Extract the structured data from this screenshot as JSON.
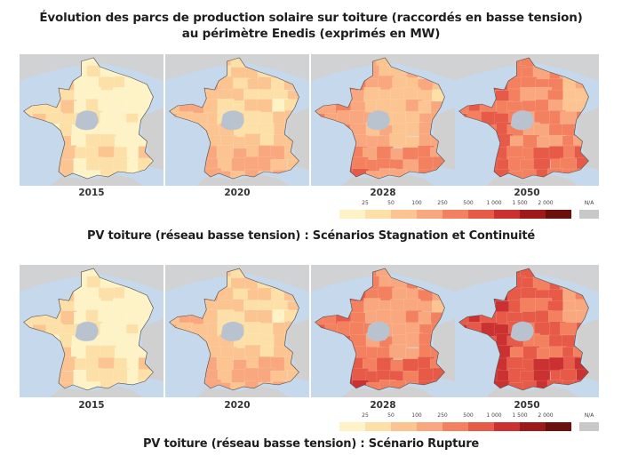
{
  "title": {
    "line1": "Évolution des parcs de production solaire sur toiture (raccordés en basse tension)",
    "line2": "au périmètre Enedis (exprimés en MW)"
  },
  "sections": [
    {
      "subtitle": "PV toiture (réseau basse tension) : Scénarios Stagnation et Continuité",
      "maps": [
        {
          "year": "2015",
          "level": 1
        },
        {
          "year": "2020",
          "level": 2
        },
        {
          "year": "2028",
          "level": 3
        },
        {
          "year": "2050",
          "level": 4
        }
      ]
    },
    {
      "subtitle": "PV toiture (réseau basse tension) : Scénario Rupture",
      "maps": [
        {
          "year": "2015",
          "level": 1
        },
        {
          "year": "2020",
          "level": 2
        },
        {
          "year": "2028",
          "level": 5
        },
        {
          "year": "2050",
          "level": 6
        }
      ]
    }
  ],
  "legend": {
    "ticks": [
      "25",
      "50",
      "100",
      "250",
      "500",
      "1 000",
      "1 500",
      "2 000"
    ],
    "na_label": "N/A",
    "colors": [
      "#fdf3c6",
      "#fde0a8",
      "#fcc490",
      "#f9a77e",
      "#f3805f",
      "#e65a47",
      "#cc3131",
      "#9e1a1a",
      "#6b0f0f"
    ],
    "na_color": "#c8c8c8"
  },
  "palette": {
    "sea": "#c6d9ec",
    "land_other": "#d0d0d0",
    "border": "#555555",
    "na_region": "#b9c3d0"
  },
  "chart_data": {
    "type": "heatmap",
    "title": "Évolution des parcs de production solaire sur toiture (raccordés en basse tension) au périmètre Enedis (exprimés en MW)",
    "description": "Choropleth maps of France by department showing installed rooftop PV capacity (MW) per year and scenario",
    "scenarios": [
      {
        "name": "Stagnation et Continuité",
        "years": [
          "2015",
          "2020",
          "2028",
          "2050"
        ],
        "typical_class": [
          "25-50",
          "50-100",
          "100-500",
          "250-1 000"
        ]
      },
      {
        "name": "Rupture",
        "years": [
          "2015",
          "2020",
          "2028",
          "2050"
        ],
        "typical_class": [
          "25-50",
          "50-100",
          "250-1 000",
          "500-1 500"
        ]
      }
    ],
    "legend_breaks": [
      25,
      50,
      100,
      250,
      500,
      1000,
      1500,
      2000
    ],
    "legend_na": "N/A",
    "unit": "MW"
  }
}
